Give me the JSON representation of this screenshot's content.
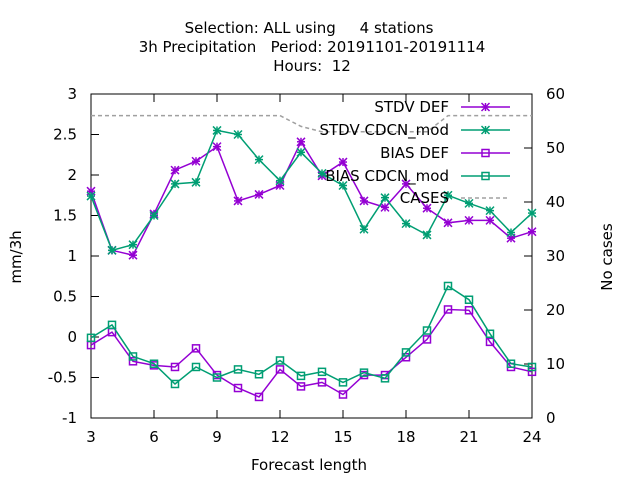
{
  "chart_data": {
    "type": "line",
    "title_lines": [
      "Selection: ALL using     4 stations",
      "3h Precipitation   Period: 20191101-20191114",
      "Hours:  12"
    ],
    "xlabel": "Forecast length",
    "ylabel": "mm/3h",
    "y2label": "No cases",
    "x": [
      3,
      4,
      5,
      6,
      7,
      8,
      9,
      10,
      11,
      12,
      13,
      14,
      15,
      16,
      17,
      18,
      19,
      20,
      21,
      22,
      23,
      24
    ],
    "xlim": [
      3,
      24
    ],
    "ylim": [
      -1,
      3
    ],
    "y2lim": [
      0,
      60
    ],
    "xticks": [
      "3",
      "6",
      "9",
      "12",
      "15",
      "18",
      "21",
      "24"
    ],
    "yticks": [
      "-1",
      "-0.5",
      "0",
      "0.5",
      "1",
      "1.5",
      "2",
      "2.5",
      "3"
    ],
    "y2ticks": [
      "0",
      "10",
      "20",
      "30",
      "40",
      "50",
      "60"
    ],
    "legend_position": "top-right",
    "series": [
      {
        "name": "STDV DEF",
        "color": "#9400d3",
        "marker": "x",
        "axis": "y",
        "values": [
          1.8,
          1.07,
          1.01,
          1.52,
          2.06,
          2.17,
          2.35,
          1.68,
          1.76,
          1.87,
          2.41,
          1.99,
          2.16,
          1.68,
          1.6,
          1.89,
          1.59,
          1.41,
          1.44,
          1.44,
          1.22,
          1.3
        ]
      },
      {
        "name": "STDV CDCN_mod",
        "color": "#009e73",
        "marker": "x",
        "axis": "y",
        "values": [
          1.74,
          1.07,
          1.14,
          1.5,
          1.89,
          1.91,
          2.55,
          2.5,
          2.19,
          1.93,
          2.28,
          2.02,
          1.87,
          1.33,
          1.72,
          1.4,
          1.26,
          1.75,
          1.65,
          1.56,
          1.29,
          1.53
        ]
      },
      {
        "name": "BIAS DEF",
        "color": "#9400d3",
        "marker": "square",
        "axis": "y",
        "values": [
          -0.1,
          0.06,
          -0.3,
          -0.35,
          -0.37,
          -0.14,
          -0.47,
          -0.63,
          -0.74,
          -0.4,
          -0.61,
          -0.56,
          -0.71,
          -0.47,
          -0.47,
          -0.25,
          -0.03,
          0.34,
          0.33,
          -0.06,
          -0.37,
          -0.43
        ]
      },
      {
        "name": "BIAS CDCN_mod",
        "color": "#009e73",
        "marker": "square",
        "axis": "y",
        "values": [
          -0.01,
          0.15,
          -0.24,
          -0.33,
          -0.58,
          -0.37,
          -0.5,
          -0.4,
          -0.46,
          -0.29,
          -0.48,
          -0.43,
          -0.56,
          -0.44,
          -0.51,
          -0.19,
          0.08,
          0.63,
          0.46,
          0.04,
          -0.33,
          -0.37
        ]
      },
      {
        "name": "CASES",
        "color": "#a0a0a0",
        "marker": "none",
        "dashed": true,
        "axis": "y2",
        "values": [
          56,
          56,
          56,
          56,
          56,
          56,
          56,
          56,
          56,
          56,
          54,
          53,
          53,
          53,
          53,
          53,
          53,
          56,
          56,
          56,
          56,
          56
        ]
      }
    ]
  }
}
